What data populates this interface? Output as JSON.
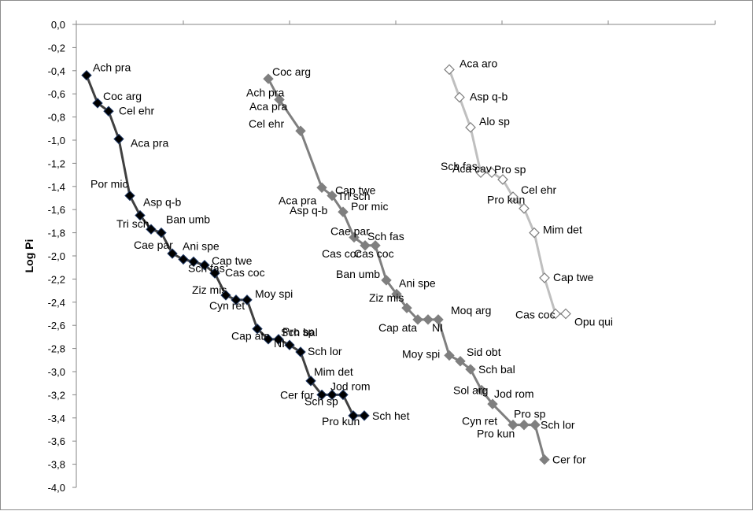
{
  "chart_data": {
    "type": "line",
    "ylabel": "Log Pi",
    "xlabel": "",
    "ylim": [
      -4.0,
      0.0
    ],
    "y_ticks": [
      "0,0",
      "-0,2",
      "-0,4",
      "-0,6",
      "-0,8",
      "-1,0",
      "-1,2",
      "-1,4",
      "-1,6",
      "-1,8",
      "-2,0",
      "-2,2",
      "-2,4",
      "-2,6",
      "-2,8",
      "-3,0",
      "-3,2",
      "-3,4",
      "-3,6",
      "-3,8",
      "-4,0"
    ],
    "y_tick_values": [
      0,
      -0.2,
      -0.4,
      -0.6,
      -0.8,
      -1.0,
      -1.2,
      -1.4,
      -1.6,
      -1.8,
      -2.0,
      -2.2,
      -2.4,
      -2.6,
      -2.8,
      -3.0,
      -3.2,
      -3.4,
      -3.6,
      -3.8,
      -4.0
    ],
    "x_axis_position": "top",
    "x_tick_labels": false,
    "grid": false,
    "legend": "none",
    "colors": {
      "series_1": "#404040",
      "series_2": "#7f7f7f",
      "series_3": "#bfbfbf",
      "marker_1_fill": "#000000",
      "marker_1_edge": "#1f3864",
      "marker_2_fill": "#7f7f7f",
      "marker_3_fill": "#ffffff"
    },
    "series": [
      {
        "marker": "filled-dark-diamond",
        "values": [
          -0.44,
          -0.68,
          -0.75,
          -0.99,
          -1.48,
          -1.65,
          -1.77,
          -1.8,
          -1.98,
          -2.03,
          -2.05,
          -2.08,
          -2.15,
          -2.34,
          -2.38,
          -2.38,
          -2.63,
          -2.72,
          -2.72,
          -2.77,
          -2.83,
          -3.08,
          -3.2,
          -3.2,
          -3.2,
          -3.38,
          -3.38
        ],
        "labels": [
          "Ach pra",
          "Coc arg",
          "Cel ehr",
          "Aca pra",
          "Por mic",
          "Asp q-b",
          "Tri sch",
          "Ban umb",
          "Cae par",
          "Ani spe",
          "Sch fas",
          "Cap twe",
          "Cas coc",
          "Ziz mis",
          "Cyn ret",
          "Moy spi",
          "Cap ata",
          "NI",
          "Pro sp",
          "Sch bal",
          "Sch lor",
          "Mim det",
          "Cer for",
          "Sch sp",
          "Jod rom",
          "Pro kun",
          "Sch het"
        ]
      },
      {
        "marker": "filled-gray-diamond",
        "values": [
          -0.47,
          -0.65,
          -0.92,
          -1.41,
          -1.48,
          -1.62,
          -1.84,
          -1.91,
          -1.91,
          -2.21,
          -2.33,
          -2.45,
          -2.55,
          -2.55,
          -2.55,
          -2.86,
          -2.91,
          -2.98,
          -3.16,
          -3.28,
          -3.46,
          -3.46,
          -3.46,
          -3.76
        ],
        "labels": [
          "Coc arg",
          "Ach pra",
          "Cel ehr",
          "Cap twe",
          "Aca pra",
          "Tri sch",
          "Cae par",
          "Sch fas",
          "Cas coc",
          "Ban umb",
          "Ani spe",
          "Ziz mis",
          "Cap ata",
          "NI",
          "Moq arg",
          "Moy spi",
          "Sid obt",
          "Sch bal",
          "Sol arg",
          "Jod rom",
          "Cyn ret",
          "Pro sp",
          "Sch lor",
          "Cer for"
        ]
      },
      {
        "marker": "hollow-diamond",
        "values": [
          -0.39,
          -0.63,
          -0.89,
          -1.28,
          -1.28,
          -1.34,
          -1.49,
          -1.59,
          -1.8,
          -2.19,
          -2.5,
          -2.5
        ],
        "labels": [
          "Aca aro",
          "Asp q-b",
          "Alo sp",
          "Sch fas",
          "Aca cav",
          "Pro sp",
          "Cel ehr",
          "Pro kun",
          "Mim det",
          "Cap twe",
          "Cas coc",
          "Opu qui"
        ]
      }
    ],
    "extra_labels_series_2": [
      "Aca pra",
      "Asp q-b",
      "Por mic",
      "Cas coc",
      "Pro kun"
    ]
  }
}
